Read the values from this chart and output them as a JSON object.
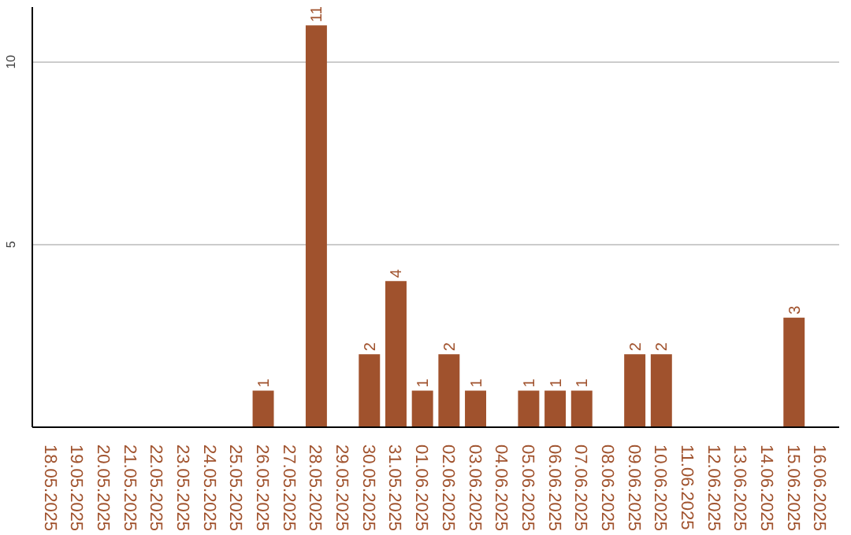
{
  "chart_data": {
    "type": "bar",
    "categories": [
      "18.05.2025",
      "19.05.2025",
      "20.05.2025",
      "21.05.2025",
      "22.05.2025",
      "23.05.2025",
      "24.05.2025",
      "25.05.2025",
      "26.05.2025",
      "27.05.2025",
      "28.05.2025",
      "29.05.2025",
      "30.05.2025",
      "31.05.2025",
      "01.06.2025",
      "02.06.2025",
      "03.06.2025",
      "04.06.2025",
      "05.06.2025",
      "06.06.2025",
      "07.06.2025",
      "08.06.2025",
      "09.06.2025",
      "10.06.2025",
      "11.06.2025",
      "12.06.2025",
      "13.06.2025",
      "14.06.2025",
      "15.06.2025",
      "16.06.2025"
    ],
    "values": [
      0,
      0,
      0,
      0,
      0,
      0,
      0,
      0,
      1,
      0,
      11,
      0,
      2,
      4,
      1,
      2,
      1,
      0,
      1,
      1,
      1,
      0,
      2,
      2,
      0,
      0,
      0,
      0,
      3,
      0
    ],
    "value_labels": [
      null,
      null,
      null,
      null,
      null,
      null,
      null,
      null,
      "1",
      null,
      "11",
      null,
      "2",
      "4",
      "1",
      "2",
      "1",
      null,
      "1",
      "1",
      "1",
      null,
      "2",
      "2",
      null,
      null,
      null,
      null,
      "3",
      null
    ],
    "color": "#a0522d",
    "ylim": [
      0,
      11.5
    ],
    "yticks": [
      5,
      10
    ],
    "grid": "y"
  }
}
